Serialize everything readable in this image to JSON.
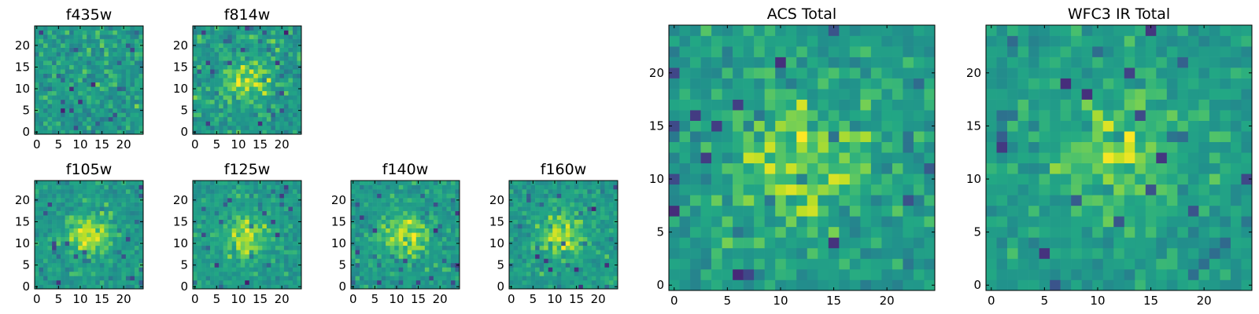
{
  "chart_data": [
    {
      "type": "heatmap",
      "title": "f435w",
      "x_ticks": [
        "0",
        "5",
        "10",
        "15",
        "20"
      ],
      "y_ticks": [
        "0",
        "5",
        "10",
        "15",
        "20"
      ],
      "grid": false,
      "size": [
        25,
        25
      ],
      "colormap": "viridis",
      "hotspot": "none",
      "noise": "high"
    },
    {
      "type": "heatmap",
      "title": "f814w",
      "x_ticks": [
        "0",
        "5",
        "10",
        "15",
        "20"
      ],
      "y_ticks": [
        "0",
        "5",
        "10",
        "15",
        "20"
      ],
      "grid": false,
      "size": [
        25,
        25
      ],
      "colormap": "viridis",
      "hotspot": "center",
      "noise": "high"
    },
    {
      "type": "heatmap",
      "title": "f105w",
      "x_ticks": [
        "0",
        "5",
        "10",
        "15",
        "20"
      ],
      "y_ticks": [
        "0",
        "5",
        "10",
        "15",
        "20"
      ],
      "grid": false,
      "size": [
        25,
        25
      ],
      "colormap": "viridis",
      "hotspot": "center",
      "noise": "medium"
    },
    {
      "type": "heatmap",
      "title": "f125w",
      "x_ticks": [
        "0",
        "5",
        "10",
        "15",
        "20"
      ],
      "y_ticks": [
        "0",
        "5",
        "10",
        "15",
        "20"
      ],
      "grid": false,
      "size": [
        25,
        25
      ],
      "colormap": "viridis",
      "hotspot": "center",
      "noise": "medium"
    },
    {
      "type": "heatmap",
      "title": "f140w",
      "x_ticks": [
        "0",
        "5",
        "10",
        "15",
        "20"
      ],
      "y_ticks": [
        "0",
        "5",
        "10",
        "15",
        "20"
      ],
      "grid": false,
      "size": [
        25,
        25
      ],
      "colormap": "viridis",
      "hotspot": "center",
      "noise": "medium"
    },
    {
      "type": "heatmap",
      "title": "f160w",
      "x_ticks": [
        "0",
        "5",
        "10",
        "15",
        "20"
      ],
      "y_ticks": [
        "0",
        "5",
        "10",
        "15",
        "20"
      ],
      "grid": false,
      "size": [
        25,
        25
      ],
      "colormap": "viridis",
      "hotspot": "center",
      "noise": "medium"
    },
    {
      "type": "heatmap",
      "title": "ACS Total",
      "x_ticks": [
        "0",
        "5",
        "10",
        "15",
        "20"
      ],
      "y_ticks": [
        "0",
        "5",
        "10",
        "15",
        "20"
      ],
      "grid": false,
      "size": [
        25,
        25
      ],
      "colormap": "viridis",
      "hotspot": "center",
      "noise": "high"
    },
    {
      "type": "heatmap",
      "title": "WFC3 IR Total",
      "x_ticks": [
        "0",
        "5",
        "10",
        "15",
        "20"
      ],
      "y_ticks": [
        "0",
        "5",
        "10",
        "15",
        "20"
      ],
      "grid": false,
      "size": [
        25,
        25
      ],
      "colormap": "viridis",
      "hotspot": "center",
      "noise": "medium"
    }
  ]
}
